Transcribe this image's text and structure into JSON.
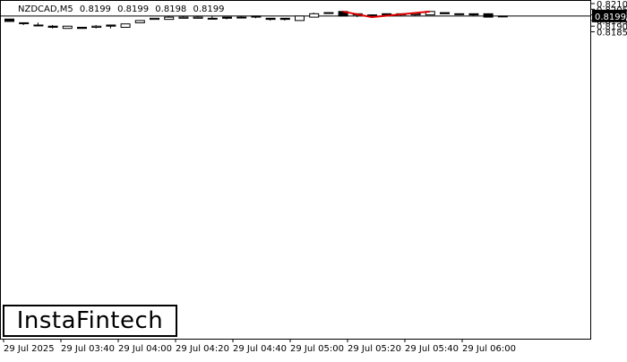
{
  "header": {
    "symbol": "NZDCAD,M5",
    "ohlc": [
      "0.8199",
      "0.8199",
      "0.8198",
      "0.8199"
    ]
  },
  "logo": {
    "text": "InstaFintech"
  },
  "chart_data": {
    "type": "candlestick",
    "symbol": "NZDCAD",
    "timeframe": "M5",
    "y_ticks": [
      "0.8210",
      "0.8205",
      "0.8200",
      "0.8195",
      "0.8190",
      "0.8185"
    ],
    "ylim": [
      0.81785,
      0.82105
    ],
    "current_price": "0.8199",
    "x_ticks": [
      "29 Jul 2025",
      "29 Jul 03:40",
      "29 Jul 04:00",
      "29 Jul 04:20",
      "29 Jul 04:40",
      "29 Jul 05:00",
      "29 Jul 05:20",
      "29 Jul 05:40",
      "29 Jul 06:00"
    ],
    "candles": [
      {
        "o": 0.81963,
        "h": 0.81963,
        "l": 0.81942,
        "c": 0.81942
      },
      {
        "o": 0.8193,
        "h": 0.8193,
        "l": 0.8191,
        "c": 0.81922
      },
      {
        "o": 0.8191,
        "h": 0.81932,
        "l": 0.8191,
        "c": 0.8191
      },
      {
        "o": 0.819,
        "h": 0.8191,
        "l": 0.8188,
        "c": 0.8189
      },
      {
        "o": 0.8188,
        "h": 0.819,
        "l": 0.8188,
        "c": 0.819
      },
      {
        "o": 0.8189,
        "h": 0.8189,
        "l": 0.8188,
        "c": 0.8188
      },
      {
        "o": 0.8189,
        "h": 0.8191,
        "l": 0.8188,
        "c": 0.819
      },
      {
        "o": 0.8191,
        "h": 0.8191,
        "l": 0.8188,
        "c": 0.819
      },
      {
        "o": 0.8189,
        "h": 0.8192,
        "l": 0.8189,
        "c": 0.8192
      },
      {
        "o": 0.8193,
        "h": 0.8195,
        "l": 0.8193,
        "c": 0.8195
      },
      {
        "o": 0.8196,
        "h": 0.8197,
        "l": 0.8196,
        "c": 0.8197
      },
      {
        "o": 0.8196,
        "h": 0.8199,
        "l": 0.8196,
        "c": 0.8198
      },
      {
        "o": 0.8197,
        "h": 0.8199,
        "l": 0.8197,
        "c": 0.8198
      },
      {
        "o": 0.8197,
        "h": 0.8199,
        "l": 0.8197,
        "c": 0.8198
      },
      {
        "o": 0.8197,
        "h": 0.8199,
        "l": 0.8197,
        "c": 0.8197
      },
      {
        "o": 0.8198,
        "h": 0.8198,
        "l": 0.8196,
        "c": 0.8197
      },
      {
        "o": 0.8198,
        "h": 0.8199,
        "l": 0.8197,
        "c": 0.8198
      },
      {
        "o": 0.8199,
        "h": 0.8199,
        "l": 0.8197,
        "c": 0.8198
      },
      {
        "o": 0.8197,
        "h": 0.8197,
        "l": 0.8195,
        "c": 0.8196
      },
      {
        "o": 0.8197,
        "h": 0.8197,
        "l": 0.8195,
        "c": 0.8196
      },
      {
        "o": 0.8195,
        "h": 0.8199,
        "l": 0.8195,
        "c": 0.8199
      },
      {
        "o": 0.8198,
        "h": 0.8202,
        "l": 0.8198,
        "c": 0.8201
      },
      {
        "o": 0.8202,
        "h": 0.8202,
        "l": 0.8201,
        "c": 0.8202
      },
      {
        "o": 0.8203,
        "h": 0.8203,
        "l": 0.8199,
        "c": 0.8199
      },
      {
        "o": 0.82,
        "h": 0.8201,
        "l": 0.8198,
        "c": 0.8201
      },
      {
        "o": 0.82,
        "h": 0.82,
        "l": 0.8198,
        "c": 0.82
      },
      {
        "o": 0.8201,
        "h": 0.8201,
        "l": 0.8199,
        "c": 0.82
      },
      {
        "o": 0.82,
        "h": 0.8201,
        "l": 0.8199,
        "c": 0.8201
      },
      {
        "o": 0.82,
        "h": 0.8202,
        "l": 0.8199,
        "c": 0.8201
      },
      {
        "o": 0.82,
        "h": 0.8203,
        "l": 0.82,
        "c": 0.8203
      },
      {
        "o": 0.8202,
        "h": 0.8202,
        "l": 0.8201,
        "c": 0.8201
      },
      {
        "o": 0.8201,
        "h": 0.8201,
        "l": 0.82,
        "c": 0.8201
      },
      {
        "o": 0.8201,
        "h": 0.8201,
        "l": 0.8199,
        "c": 0.82
      },
      {
        "o": 0.8201,
        "h": 0.8201,
        "l": 0.8198,
        "c": 0.8198
      },
      {
        "o": 0.8199,
        "h": 0.8199,
        "l": 0.8198,
        "c": 0.8199
      }
    ],
    "pattern_line": [
      {
        "index": 23,
        "price": 0.8203
      },
      {
        "index": 25,
        "price": 0.8198
      },
      {
        "index": 29,
        "price": 0.8203
      }
    ],
    "colors": {
      "pattern": "#e00000",
      "bull_fill": "#ffffff",
      "bear_fill": "#000000",
      "outline": "#000000"
    }
  }
}
